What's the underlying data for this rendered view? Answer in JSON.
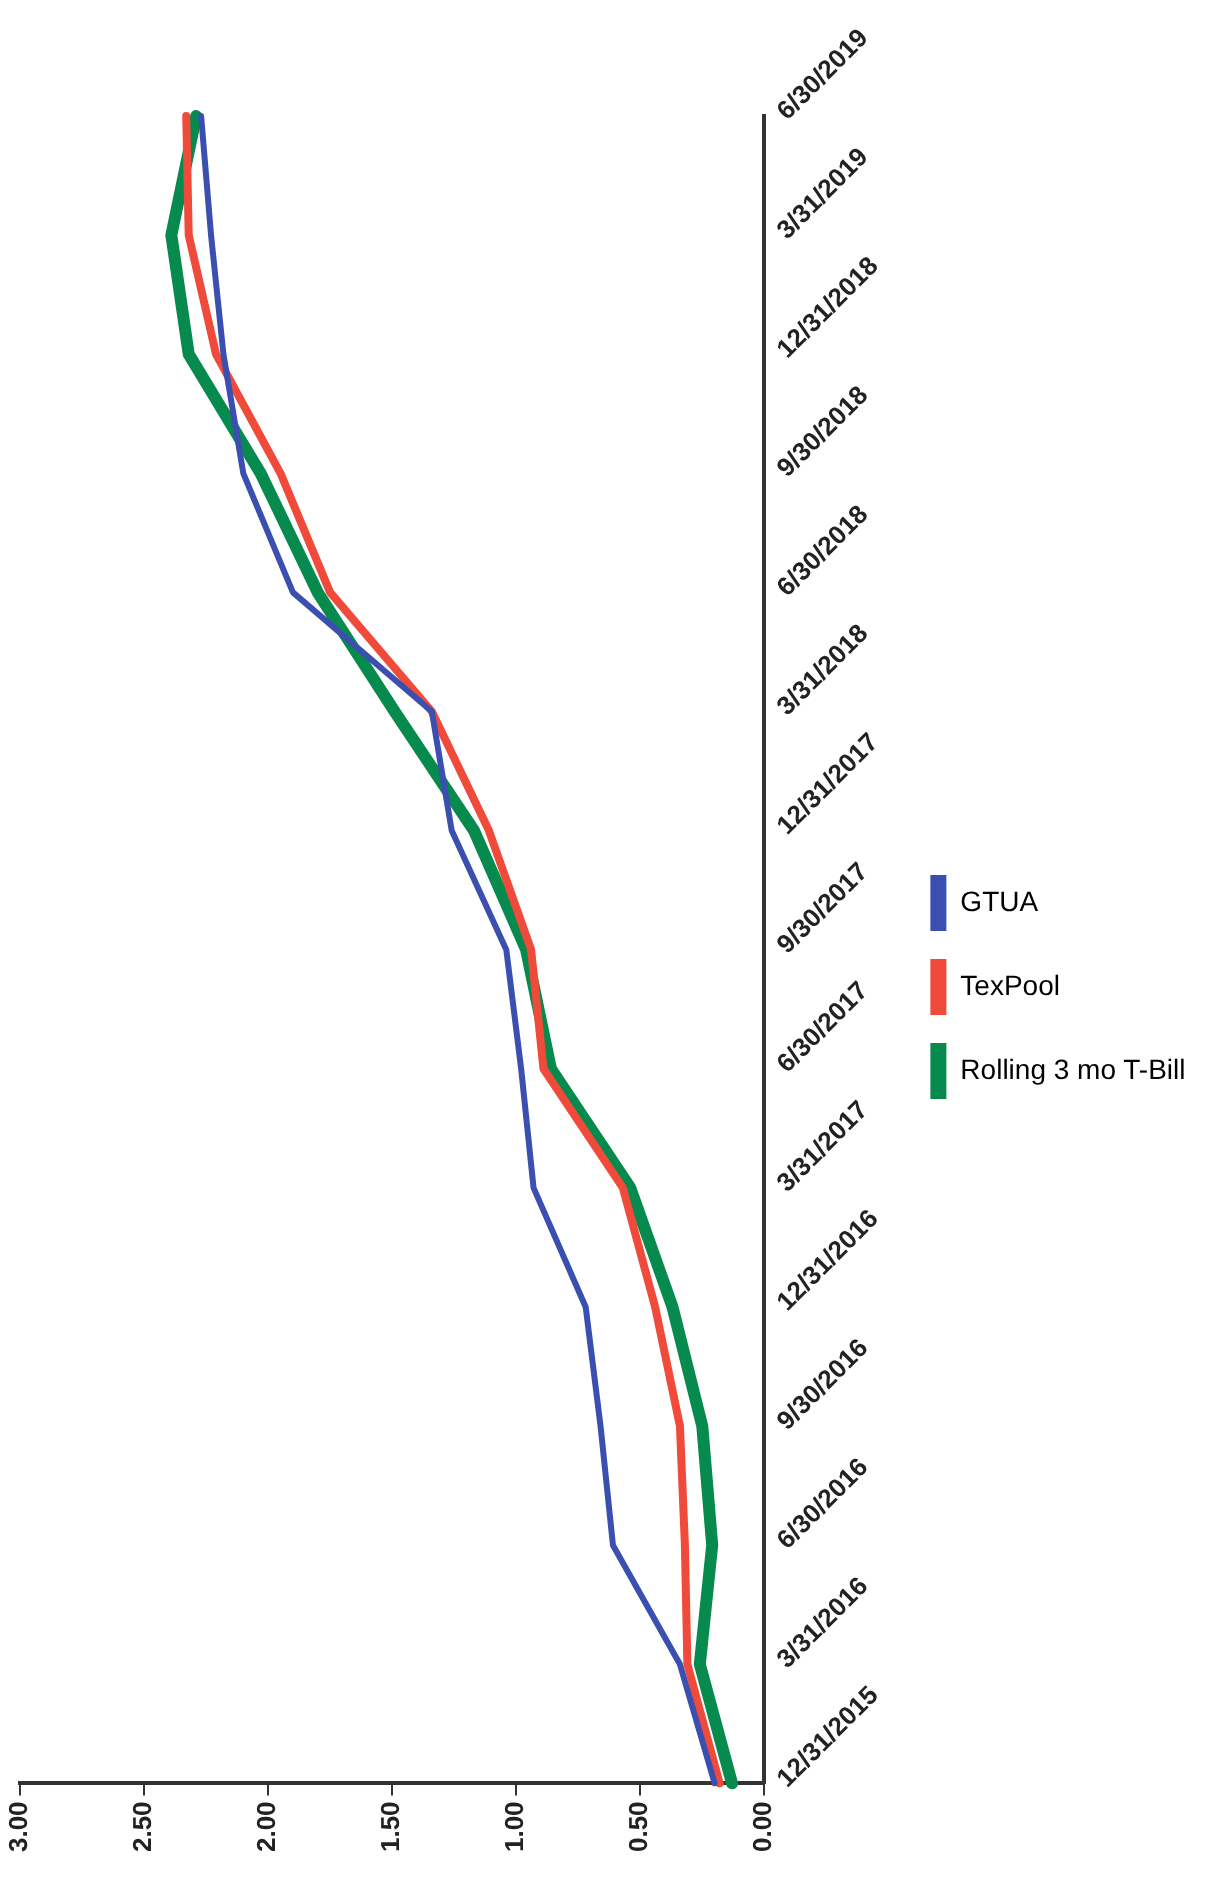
{
  "chart_data": {
    "type": "line",
    "categories": [
      "6/30/2019",
      "3/31/2019",
      "12/31/2018",
      "9/30/2018",
      "6/30/2018",
      "3/31/2018",
      "12/31/2017",
      "9/30/2017",
      "6/30/2017",
      "3/31/2017",
      "12/31/2016",
      "9/30/2016",
      "6/30/2016",
      "3/31/2016",
      "12/31/2015"
    ],
    "series": [
      {
        "name": "GTUA",
        "color": "#3a4fb0",
        "values": [
          2.27,
          2.23,
          2.18,
          2.1,
          1.9,
          1.34,
          1.26,
          1.04,
          0.98,
          0.93,
          0.72,
          0.66,
          0.61,
          0.34,
          0.2
        ]
      },
      {
        "name": "TexPool",
        "color": "#f04a3a",
        "values": [
          2.33,
          2.32,
          2.21,
          1.95,
          1.75,
          1.34,
          1.11,
          0.94,
          0.89,
          0.57,
          0.44,
          0.34,
          0.32,
          0.31,
          0.18
        ]
      },
      {
        "name": "Rolling 3 mo T-Bill",
        "color": "#078a4e",
        "values": [
          2.29,
          2.39,
          2.32,
          2.03,
          1.8,
          1.49,
          1.17,
          0.96,
          0.86,
          0.54,
          0.37,
          0.25,
          0.21,
          0.26,
          0.13
        ]
      }
    ],
    "orientation": "horizontal",
    "xlim": [
      3,
      0
    ],
    "xticks": [
      {
        "value": 3,
        "label": "3.00"
      },
      {
        "value": 2.5,
        "label": "2.50"
      },
      {
        "value": 2,
        "label": "2.00"
      },
      {
        "value": 1.5,
        "label": "1.50"
      },
      {
        "value": 1,
        "label": "1.00"
      },
      {
        "value": 0.5,
        "label": "0.50"
      },
      {
        "value": 0,
        "label": "0.00"
      }
    ],
    "grid": false,
    "legend": "bottom",
    "marker": "none",
    "line_style": "solid"
  }
}
